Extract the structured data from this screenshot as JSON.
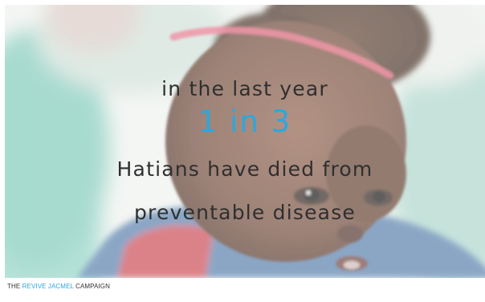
{
  "slide": {
    "line_1": "in the last year",
    "line_2": "1 in 3",
    "line_3": "Hatians have died from",
    "line_4": "preventable disease"
  },
  "footer": {
    "prefix": "THE ",
    "highlight": "REVIVE JACMEL",
    "suffix": " CAMPAIGN"
  },
  "colors": {
    "text": "#2f2f2f",
    "accent": "#29a8e0",
    "footer_text": "#333333",
    "headband": "#e8607c",
    "shirt": "#4f79a8",
    "background_green": "#8fd3c3"
  }
}
